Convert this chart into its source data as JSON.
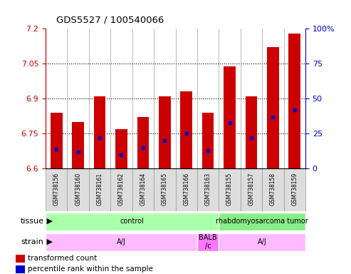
{
  "title": "GDS5527 / 100540066",
  "samples": [
    "GSM738156",
    "GSM738160",
    "GSM738161",
    "GSM738162",
    "GSM738164",
    "GSM738165",
    "GSM738166",
    "GSM738163",
    "GSM738155",
    "GSM738157",
    "GSM738158",
    "GSM738159"
  ],
  "transformed_counts": [
    6.84,
    6.8,
    6.91,
    6.77,
    6.82,
    6.91,
    6.93,
    6.84,
    7.04,
    6.91,
    7.12,
    7.18
  ],
  "percentile_ranks": [
    14,
    12,
    22,
    10,
    15,
    20,
    25,
    13,
    33,
    22,
    37,
    42
  ],
  "ymin": 6.6,
  "ymax": 7.2,
  "yticks": [
    6.6,
    6.75,
    6.9,
    7.05,
    7.2
  ],
  "ytick_labels": [
    "6.6",
    "6.75",
    "6.9",
    "7.05",
    "7.2"
  ],
  "y2min": 0,
  "y2max": 100,
  "y2ticks": [
    0,
    25,
    50,
    75,
    100
  ],
  "y2tick_labels": [
    "0",
    "25",
    "50",
    "75",
    "100%"
  ],
  "bar_color": "#cc0000",
  "blue_color": "#0000cc",
  "tissue_groups": [
    {
      "label": "control",
      "start": 0,
      "end": 8,
      "color": "#aaffaa"
    },
    {
      "label": "rhabdomyosarcoma tumor",
      "start": 8,
      "end": 12,
      "color": "#88ee88"
    }
  ],
  "strain_groups": [
    {
      "label": "A/J",
      "start": 0,
      "end": 7,
      "color": "#ffbbff"
    },
    {
      "label": "BALB\n/c",
      "start": 7,
      "end": 8,
      "color": "#ff77ff"
    },
    {
      "label": "A/J",
      "start": 8,
      "end": 12,
      "color": "#ffbbff"
    }
  ],
  "legend_items": [
    {
      "color": "#cc0000",
      "label": "transformed count"
    },
    {
      "color": "#0000cc",
      "label": "percentile rank within the sample"
    }
  ],
  "bar_width": 0.55,
  "base_value": 6.6,
  "sample_box_color": "#dddddd",
  "sample_box_edge": "#999999"
}
